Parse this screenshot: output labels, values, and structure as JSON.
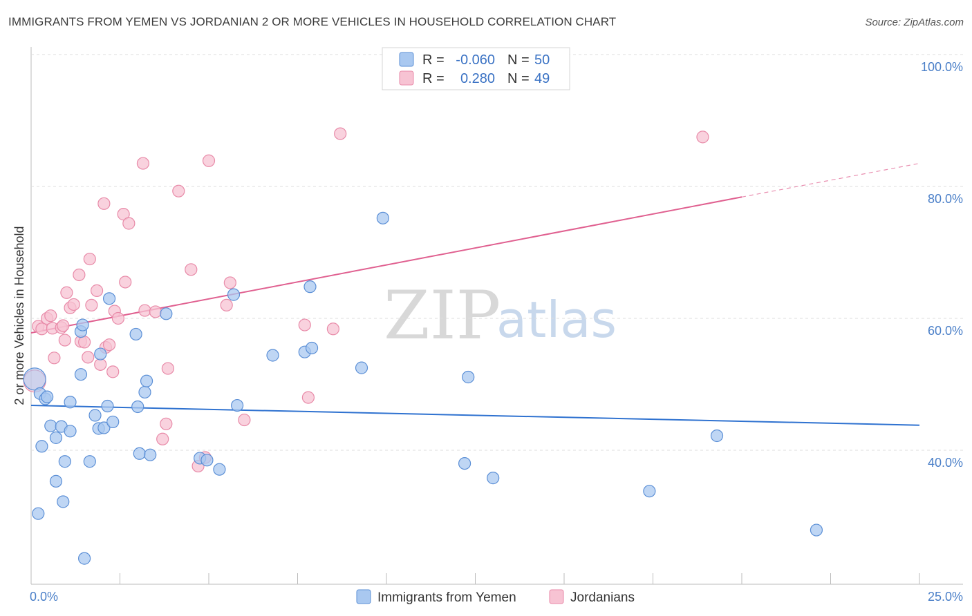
{
  "header": {
    "title": "IMMIGRANTS FROM YEMEN VS JORDANIAN 2 OR MORE VEHICLES IN HOUSEHOLD CORRELATION CHART",
    "source": "Source: ZipAtlas.com"
  },
  "legend": {
    "r_label": "R =",
    "n_label": "N =",
    "rows": [
      {
        "r": "-0.060",
        "n": "50"
      },
      {
        "r": "0.280",
        "n": "49"
      }
    ]
  },
  "watermark": {
    "zip": "ZIP",
    "atlas": "atlas"
  },
  "colors": {
    "blue_fill": "#a9c8f0",
    "blue_stroke": "#5b8fd6",
    "blue_line": "#2f72d0",
    "pink_fill": "#f7c3d3",
    "pink_stroke": "#e88aa8",
    "pink_line": "#e06090"
  },
  "chart_data": {
    "type": "scatter",
    "title": "IMMIGRANTS FROM YEMEN VS JORDANIAN 2 OR MORE VEHICLES IN HOUSEHOLD CORRELATION CHART",
    "xlabel": "",
    "ylabel": "2 or more Vehicles in Household",
    "xlim": [
      0,
      25
    ],
    "ylim": [
      20,
      102
    ],
    "x_tick_labels": [
      {
        "value": 0,
        "label": "0.0%"
      },
      {
        "value": 25,
        "label": "25.0%"
      }
    ],
    "y_tick_labels": [
      {
        "value": 40,
        "label": "40.0%"
      },
      {
        "value": 60,
        "label": "60.0%"
      },
      {
        "value": 80,
        "label": "80.0%"
      },
      {
        "value": 100,
        "label": "100.0%"
      }
    ],
    "grid": true,
    "series": [
      {
        "name": "Immigrants from Yemen",
        "color": "#a9c8f0",
        "R": -0.06,
        "N": 50,
        "trend": {
          "x0": 0,
          "y0": 46.8,
          "x1": 25,
          "y1": 43.8
        },
        "points": [
          [
            0.1,
            50.8
          ],
          [
            0.2,
            30.4
          ],
          [
            0.25,
            48.6
          ],
          [
            0.3,
            40.6
          ],
          [
            0.4,
            47.8
          ],
          [
            0.45,
            48.1
          ],
          [
            0.55,
            43.7
          ],
          [
            0.7,
            35.3
          ],
          [
            0.7,
            41.9
          ],
          [
            0.85,
            43.6
          ],
          [
            0.9,
            32.2
          ],
          [
            0.95,
            38.3
          ],
          [
            1.1,
            47.3
          ],
          [
            1.1,
            42.9
          ],
          [
            1.4,
            51.5
          ],
          [
            1.4,
            58.0
          ],
          [
            1.45,
            59.0
          ],
          [
            1.5,
            23.6
          ],
          [
            1.65,
            38.3
          ],
          [
            1.8,
            45.3
          ],
          [
            1.9,
            43.3
          ],
          [
            1.95,
            54.6
          ],
          [
            2.05,
            43.4
          ],
          [
            2.15,
            46.7
          ],
          [
            2.2,
            63.0
          ],
          [
            2.3,
            44.3
          ],
          [
            2.95,
            57.6
          ],
          [
            3.0,
            46.6
          ],
          [
            3.05,
            39.5
          ],
          [
            3.2,
            48.8
          ],
          [
            3.25,
            50.5
          ],
          [
            3.35,
            39.3
          ],
          [
            3.8,
            60.7
          ],
          [
            4.75,
            38.8
          ],
          [
            4.95,
            38.5
          ],
          [
            5.3,
            37.1
          ],
          [
            5.7,
            63.6
          ],
          [
            5.8,
            46.8
          ],
          [
            6.8,
            54.4
          ],
          [
            7.7,
            54.9
          ],
          [
            7.85,
            64.8
          ],
          [
            7.9,
            55.5
          ],
          [
            9.3,
            52.5
          ],
          [
            9.9,
            75.2
          ],
          [
            12.2,
            38.0
          ],
          [
            12.3,
            51.1
          ],
          [
            13.0,
            35.8
          ],
          [
            17.4,
            33.8
          ],
          [
            19.3,
            42.2
          ],
          [
            22.1,
            27.9
          ]
        ]
      },
      {
        "name": "Jordanians",
        "color": "#f7c3d3",
        "R": 0.28,
        "N": 49,
        "trend": {
          "x0": 0,
          "y0": 57.8,
          "x1": 20.0,
          "y1": 78.4
        },
        "trend_dashed": {
          "x0": 20.0,
          "y0": 78.4,
          "x1": 25,
          "y1": 83.5
        },
        "points": [
          [
            0.1,
            50.5
          ],
          [
            0.2,
            58.8
          ],
          [
            0.3,
            58.4
          ],
          [
            0.45,
            60.0
          ],
          [
            0.55,
            60.4
          ],
          [
            0.6,
            58.5
          ],
          [
            0.65,
            54.0
          ],
          [
            0.85,
            58.6
          ],
          [
            0.9,
            58.9
          ],
          [
            0.95,
            56.7
          ],
          [
            1.0,
            63.9
          ],
          [
            1.1,
            61.6
          ],
          [
            1.2,
            62.1
          ],
          [
            1.35,
            66.6
          ],
          [
            1.4,
            56.5
          ],
          [
            1.5,
            56.4
          ],
          [
            1.6,
            54.1
          ],
          [
            1.65,
            69.0
          ],
          [
            1.7,
            62.0
          ],
          [
            1.85,
            64.2
          ],
          [
            1.95,
            53.0
          ],
          [
            2.05,
            77.4
          ],
          [
            2.1,
            55.6
          ],
          [
            2.2,
            56.0
          ],
          [
            2.3,
            51.9
          ],
          [
            2.35,
            61.1
          ],
          [
            2.45,
            60.0
          ],
          [
            2.6,
            75.8
          ],
          [
            2.75,
            74.4
          ],
          [
            2.65,
            65.5
          ],
          [
            3.15,
            83.5
          ],
          [
            3.2,
            61.2
          ],
          [
            3.5,
            61.0
          ],
          [
            3.8,
            44.0
          ],
          [
            3.85,
            52.4
          ],
          [
            3.7,
            41.7
          ],
          [
            4.15,
            79.3
          ],
          [
            4.5,
            67.4
          ],
          [
            4.7,
            37.6
          ],
          [
            4.9,
            38.9
          ],
          [
            5.0,
            83.9
          ],
          [
            5.5,
            62.0
          ],
          [
            5.6,
            65.4
          ],
          [
            6.0,
            44.6
          ],
          [
            7.7,
            59.0
          ],
          [
            7.8,
            48.0
          ],
          [
            8.5,
            58.4
          ],
          [
            8.7,
            88.0
          ],
          [
            18.9,
            87.5
          ]
        ]
      }
    ]
  }
}
